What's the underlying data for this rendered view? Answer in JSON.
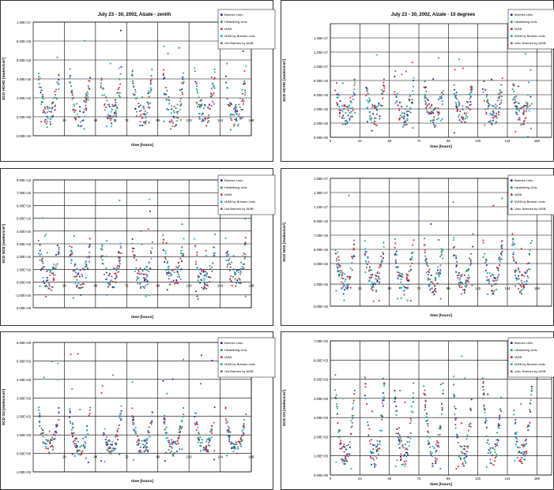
{
  "series_colors": [
    "#1f2a8a",
    "#1e9a5a",
    "#e0242c",
    "#19a9d6",
    "#8a5a8c"
  ],
  "chart_data": [
    {
      "type": "scatter",
      "title": "July 23 - 30, 2002, Alzate - zenith",
      "xlabel": "time [hours]",
      "ylabel": "SCD HCHO [molec/cm²]",
      "xlim": [
        0,
        168
      ],
      "ylim": [
        -2e+16,
        1e+17
      ],
      "xticks": [
        24,
        48,
        72,
        96,
        120,
        144,
        168
      ],
      "xtick_labels": [
        "24",
        "48",
        "72",
        "96",
        "120",
        "144",
        "168"
      ],
      "yticks": [
        -2e+16,
        0,
        2e+16,
        4e+16,
        6e+16,
        8e+16,
        1e+17
      ],
      "ytick_labels": [
        "-2.00E+16",
        "0.00E+00",
        "2.00E+16",
        "4.00E+16",
        "6.00E+16",
        "8.00E+16",
        "1.00E+17"
      ],
      "legend": [
        "Bremen Univ.",
        "Heidelberg Univ.",
        "IASB",
        "IASB by Bremen Univ.",
        "Uni Bremen by IASB"
      ],
      "legend_position": "top-right",
      "grid": true,
      "day_profile": {
        "base": 1000000000000000.0,
        "peak": 4.5e+16,
        "spread": 1.2e+16,
        "noise_floor": -1.5e+16,
        "outlier_max": 9.5e+16
      }
    },
    {
      "type": "scatter",
      "title": "July 23 - 30, 2002, Alzate - 10 degrees",
      "xlabel": "time [hours]",
      "ylabel": "SCD HCHO [molec/cm²]",
      "xlim": [
        0,
        180
      ],
      "ylim": [
        0,
        1.6e+17
      ],
      "xticks": [
        0,
        24,
        48,
        72,
        96,
        120,
        144,
        168
      ],
      "xtick_labels": [
        "0",
        "24",
        "48",
        "72",
        "96",
        "120",
        "144",
        "168"
      ],
      "yticks": [
        0,
        2e+16,
        4e+16,
        6e+16,
        8e+16,
        1e+17,
        1.2e+17,
        1.4e+17
      ],
      "ytick_labels": [
        "0.00E+00",
        "2.00E+16",
        "4.00E+16",
        "6.00E+16",
        "8.00E+16",
        "1.00E+17",
        "1.20E+17",
        "1.40E+17"
      ],
      "legend": [
        "Bremen Univ.",
        "Heidelberg Univ.",
        "IASB",
        "IASB by Bremen Univ.",
        "Univ. Bremen by IASB"
      ],
      "legend_position": "top-right",
      "grid": true,
      "day_profile": {
        "base": 3e+16,
        "peak": 7.5e+16,
        "spread": 1.5e+16,
        "noise_floor": 0,
        "outlier_max": 1.3e+17
      }
    },
    {
      "type": "scatter",
      "title": "",
      "xlabel": "time [hours]",
      "ylabel": "SCD NO2 [molec/cm²]",
      "xlim": [
        0,
        168
      ],
      "ylim": [
        -2e+16,
        8e+16
      ],
      "xticks": [
        24,
        48,
        72,
        96,
        120,
        144,
        168
      ],
      "xtick_labels": [
        "24",
        "48",
        "72",
        "96",
        "120",
        "144",
        "168"
      ],
      "yticks": [
        -2e+16,
        -1e+16,
        0,
        1e+16,
        2e+16,
        3e+16,
        4e+16,
        5e+16,
        6e+16,
        7e+16,
        8e+16
      ],
      "ytick_labels": [
        "-2.00E+16",
        "-1.00E+16",
        "0.00E+00",
        "1.00E+16",
        "2.00E+16",
        "3.00E+16",
        "4.00E+16",
        "5.00E+16",
        "6.00E+16",
        "7.00E+16",
        "8.00E+16"
      ],
      "legend": [
        "Bremen Univ.",
        "Heidelberg Univ.",
        "IASB",
        "IASB by Bremen Univ.",
        "Uni Bremen by IASB"
      ],
      "legend_position": "top-right",
      "grid": true,
      "day_profile": {
        "base": 2000000000000000.0,
        "peak": 3e+16,
        "spread": 8000000000000000.0,
        "noise_floor": -1.5e+16,
        "outlier_max": 7.5e+16
      }
    },
    {
      "type": "scatter",
      "title": "",
      "xlabel": "time [hours]",
      "ylabel": "SCD NO2 [molec/cm²]",
      "xlim": [
        0,
        180
      ],
      "ylim": [
        -3e+16,
        1.5e+17
      ],
      "xticks": [
        24,
        48,
        72,
        96,
        120,
        144,
        168
      ],
      "xtick_labels": [
        "24",
        "48",
        "72",
        "96",
        "120",
        "144",
        "168"
      ],
      "yticks": [
        -3e+16,
        1000000000000000.0,
        3e+16,
        5e+16,
        7e+16,
        9e+16,
        1.1e+17,
        1.3e+17,
        1.5e+17
      ],
      "ytick_labels": [
        "-3.00E+16",
        "1.00E+15",
        "3.00E+16",
        "5.00E+16",
        "7.00E+16",
        "9.00E+16",
        "1.10E+17",
        "1.30E+17",
        "1.50E+17"
      ],
      "legend": [
        "Bremen Univ.",
        "Heidelberg Univ.",
        "IASB",
        "IASB by Bremen Univ.",
        "Univ. Bremen by IASB"
      ],
      "legend_position": "top-right",
      "grid": true,
      "day_profile": {
        "base": 1000000000000000.0,
        "peak": 6e+16,
        "spread": 1.5e+16,
        "noise_floor": -2.5e+16,
        "outlier_max": 1.35e+17
      }
    },
    {
      "type": "scatter",
      "title": "",
      "xlabel": "time [hours]",
      "ylabel": "SCD O4 [molec/cm²]",
      "xlim": [
        0,
        168
      ],
      "ylim": [
        -1000.0,
        6000.0
      ],
      "xticks": [
        24,
        48,
        72,
        96,
        120,
        144,
        168
      ],
      "xtick_labels": [
        "24",
        "48",
        "72",
        "96",
        "120",
        "144",
        "168"
      ],
      "yticks": [
        -1000.0,
        0,
        1000.0,
        2000.0,
        3000.0,
        4000.0,
        5000.0,
        6000.0
      ],
      "ytick_labels": [
        "-1.00E+03",
        "0.00E+00",
        "1.00E+03",
        "2.00E+03",
        "3.00E+03",
        "4.00E+03",
        "5.00E+03",
        "6.00E+03"
      ],
      "legend": [
        "Bremen Univ.",
        "Heidelberg Univ.",
        "IASB",
        "IASB by Bremen Univ.",
        "Uni Bremen by IASB"
      ],
      "legend_position": "top-right",
      "grid": true,
      "day_profile": {
        "base": 300,
        "peak": 2300,
        "spread": 400,
        "noise_floor": -500,
        "outlier_max": 5500
      }
    },
    {
      "type": "scatter",
      "title": "",
      "xlabel": "time [hours]",
      "ylabel": "SCD O4 [molec/cm²]",
      "xlim": [
        0,
        180
      ],
      "ylim": [
        0,
        7000.0
      ],
      "xticks": [
        0,
        24,
        48,
        72,
        96,
        120,
        144,
        168
      ],
      "xtick_labels": [
        "0",
        "24",
        "48",
        "72",
        "96",
        "120",
        "144",
        "168"
      ],
      "yticks": [
        0,
        1000.0,
        2000.0,
        3000.0,
        4000.0,
        5000.0,
        6000.0,
        7000.0
      ],
      "ytick_labels": [
        "0.00E+00",
        "1.00E+03",
        "2.00E+03",
        "3.00E+03",
        "4.00E+03",
        "5.00E+03",
        "6.00E+03",
        "7.00E+03"
      ],
      "legend": [
        "Bremen Univ.",
        "Heidelberg Univ.",
        "IASB",
        "IASB by Bremen Univ.",
        "Univ. Bremen by IASB"
      ],
      "legend_position": "top-right",
      "grid": true,
      "day_profile": {
        "base": 1000,
        "peak": 4800,
        "spread": 600,
        "noise_floor": 300,
        "outlier_max": 6500
      }
    }
  ]
}
